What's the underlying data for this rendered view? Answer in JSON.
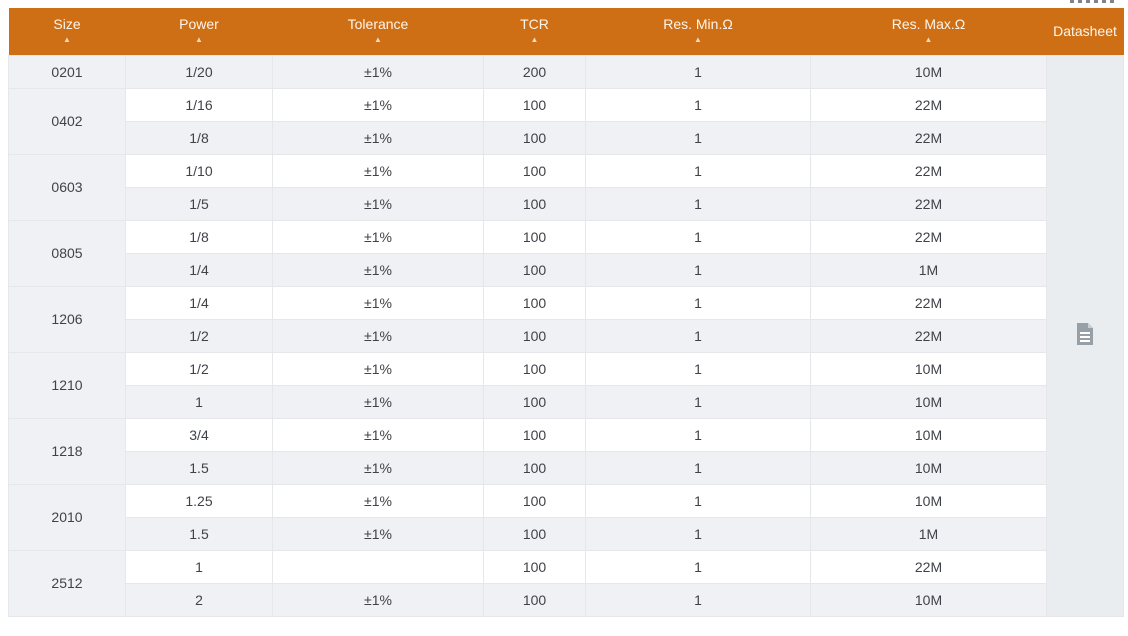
{
  "header": {
    "columns": [
      {
        "label": "Size",
        "sortable": true,
        "sort_icon": "sort-asc-icon"
      },
      {
        "label": "Power",
        "sortable": true,
        "sort_icon": "sort-asc-icon"
      },
      {
        "label": "Tolerance",
        "sortable": true,
        "sort_icon": "sort-asc-icon"
      },
      {
        "label": "TCR",
        "sortable": true,
        "sort_icon": "sort-asc-icon"
      },
      {
        "label": "Res. Min.Ω",
        "sortable": true,
        "sort_icon": "sort-asc-icon"
      },
      {
        "label": "Res. Max.Ω",
        "sortable": true,
        "sort_icon": "sort-asc-icon"
      },
      {
        "label": "Datasheet",
        "sortable": false,
        "sort_icon": null
      }
    ]
  },
  "table": {
    "datasheet_icon_name": "file-document-icon",
    "groups": [
      {
        "size": "0201",
        "rows": [
          {
            "power": "1/20",
            "tolerance": "±1%",
            "tcr": "200",
            "res_min": "1",
            "res_max": "10M"
          }
        ]
      },
      {
        "size": "0402",
        "rows": [
          {
            "power": "1/16",
            "tolerance": "±1%",
            "tcr": "100",
            "res_min": "1",
            "res_max": "22M"
          },
          {
            "power": "1/8",
            "tolerance": "±1%",
            "tcr": "100",
            "res_min": "1",
            "res_max": "22M"
          }
        ]
      },
      {
        "size": "0603",
        "rows": [
          {
            "power": "1/10",
            "tolerance": "±1%",
            "tcr": "100",
            "res_min": "1",
            "res_max": "22M"
          },
          {
            "power": "1/5",
            "tolerance": "±1%",
            "tcr": "100",
            "res_min": "1",
            "res_max": "22M"
          }
        ]
      },
      {
        "size": "0805",
        "rows": [
          {
            "power": "1/8",
            "tolerance": "±1%",
            "tcr": "100",
            "res_min": "1",
            "res_max": "22M"
          },
          {
            "power": "1/4",
            "tolerance": "±1%",
            "tcr": "100",
            "res_min": "1",
            "res_max": "1M"
          }
        ]
      },
      {
        "size": "1206",
        "rows": [
          {
            "power": "1/4",
            "tolerance": "±1%",
            "tcr": "100",
            "res_min": "1",
            "res_max": "22M"
          },
          {
            "power": "1/2",
            "tolerance": "±1%",
            "tcr": "100",
            "res_min": "1",
            "res_max": "22M"
          }
        ]
      },
      {
        "size": "1210",
        "rows": [
          {
            "power": "1/2",
            "tolerance": "±1%",
            "tcr": "100",
            "res_min": "1",
            "res_max": "10M"
          },
          {
            "power": "1",
            "tolerance": "±1%",
            "tcr": "100",
            "res_min": "1",
            "res_max": "10M"
          }
        ]
      },
      {
        "size": "1218",
        "rows": [
          {
            "power": "3/4",
            "tolerance": "±1%",
            "tcr": "100",
            "res_min": "1",
            "res_max": "10M"
          },
          {
            "power": "1.5",
            "tolerance": "±1%",
            "tcr": "100",
            "res_min": "1",
            "res_max": "10M"
          }
        ]
      },
      {
        "size": "2010",
        "rows": [
          {
            "power": "1.25",
            "tolerance": "±1%",
            "tcr": "100",
            "res_min": "1",
            "res_max": "10M"
          },
          {
            "power": "1.5",
            "tolerance": "±1%",
            "tcr": "100",
            "res_min": "1",
            "res_max": "1M"
          }
        ]
      },
      {
        "size": "2512",
        "rows": [
          {
            "power": "1",
            "tolerance": "",
            "tcr": "100",
            "res_min": "1",
            "res_max": "22M"
          },
          {
            "power": "2",
            "tolerance": "±1%",
            "tcr": "100",
            "res_min": "1",
            "res_max": "10M"
          }
        ]
      }
    ]
  },
  "colors": {
    "header_bg": "#cf6f15",
    "header_text": "#fdf5ea",
    "sort_arrow": "#f3dcba",
    "stripe_row_bg": "#eff1f4",
    "datasheet_col_bg": "#eaedf0",
    "cell_border": "#e5e7ea",
    "cell_text": "#3f4247",
    "doc_icon": "#98a0a7"
  }
}
